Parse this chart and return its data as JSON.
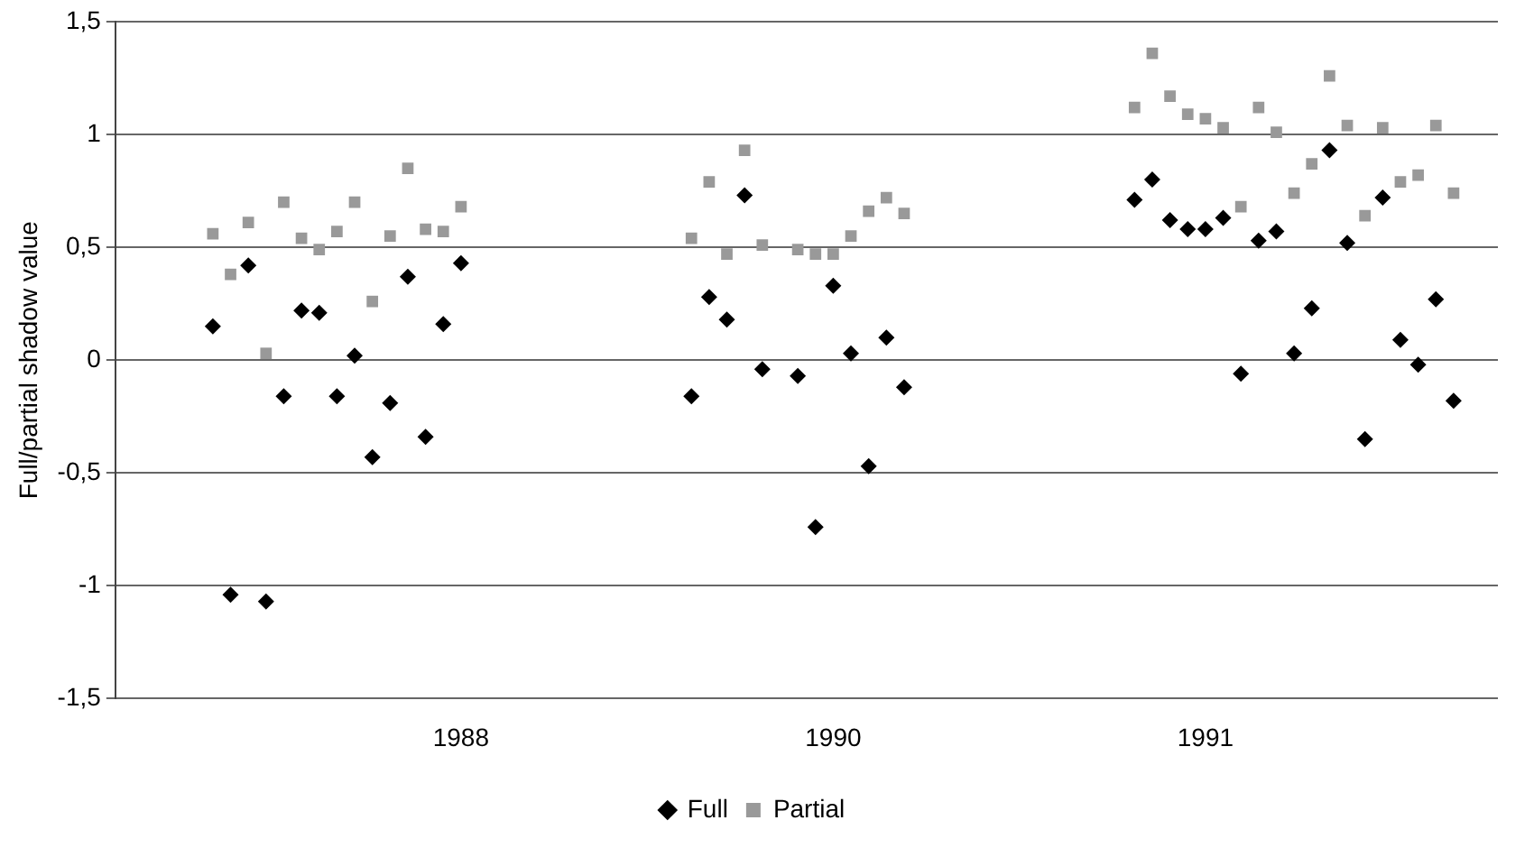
{
  "chart_data": {
    "type": "scatter",
    "ylabel": "Full/partial shadow value",
    "categories": [
      null,
      null,
      null,
      null,
      null,
      null,
      null,
      null,
      null,
      null,
      null,
      null,
      null,
      null,
      null,
      null,
      null,
      null,
      null,
      "1988",
      null,
      null,
      null,
      null,
      null,
      null,
      null,
      null,
      null,
      null,
      null,
      null,
      null,
      null,
      null,
      null,
      null,
      null,
      null,
      null,
      "1990",
      null,
      null,
      null,
      null,
      null,
      null,
      null,
      null,
      null,
      null,
      null,
      null,
      null,
      null,
      null,
      null,
      null,
      null,
      null,
      null,
      "1991",
      null,
      null,
      null,
      null,
      null,
      null,
      null,
      null,
      null,
      null,
      null,
      null,
      null,
      null,
      null,
      null
    ],
    "series": [
      {
        "name": "Full",
        "color": "#000000",
        "marker": "diamond",
        "values": [
          null,
          null,
          null,
          null,
          null,
          0.15,
          -1.04,
          0.42,
          -1.07,
          -0.16,
          0.22,
          0.21,
          -0.16,
          0.02,
          -0.43,
          -0.19,
          0.37,
          -0.34,
          0.16,
          0.43,
          null,
          null,
          null,
          null,
          null,
          null,
          null,
          null,
          null,
          null,
          null,
          null,
          -0.16,
          0.28,
          0.18,
          0.73,
          -0.04,
          null,
          -0.07,
          -0.74,
          0.33,
          0.03,
          -0.47,
          0.1,
          -0.12,
          null,
          null,
          null,
          null,
          null,
          null,
          null,
          null,
          null,
          null,
          null,
          null,
          0.71,
          0.8,
          0.62,
          0.58,
          0.58,
          0.63,
          -0.06,
          0.53,
          0.57,
          0.03,
          0.23,
          0.93,
          0.52,
          -0.35,
          0.72,
          0.09,
          -0.02,
          0.27,
          -0.18,
          null,
          null
        ]
      },
      {
        "name": "Partial",
        "color": "#999999",
        "marker": "square",
        "values": [
          null,
          null,
          null,
          null,
          null,
          0.56,
          0.38,
          0.61,
          0.03,
          0.7,
          0.54,
          0.49,
          0.57,
          0.7,
          0.26,
          0.55,
          0.85,
          0.58,
          0.57,
          0.68,
          null,
          null,
          null,
          null,
          null,
          null,
          null,
          null,
          null,
          null,
          null,
          null,
          0.54,
          0.79,
          0.47,
          0.93,
          0.51,
          null,
          0.49,
          0.47,
          0.47,
          0.55,
          0.66,
          0.72,
          0.65,
          null,
          null,
          null,
          null,
          null,
          null,
          null,
          null,
          null,
          null,
          null,
          null,
          1.12,
          1.36,
          1.17,
          1.09,
          1.07,
          1.03,
          0.68,
          1.12,
          1.01,
          0.74,
          0.87,
          1.26,
          1.04,
          0.64,
          1.03,
          0.79,
          0.82,
          1.04,
          0.74,
          null,
          null
        ]
      }
    ],
    "ylim": [
      -1.5,
      1.5
    ],
    "yticks": [
      {
        "value": -1.5,
        "label": "-1,5"
      },
      -1,
      {
        "value": -0.5,
        "label": "-0,5"
      },
      0,
      {
        "value": 0.5,
        "label": "0,5"
      },
      1,
      {
        "value": 1.5,
        "label": "1,5"
      }
    ],
    "grid": "y",
    "legend": "bottom"
  }
}
